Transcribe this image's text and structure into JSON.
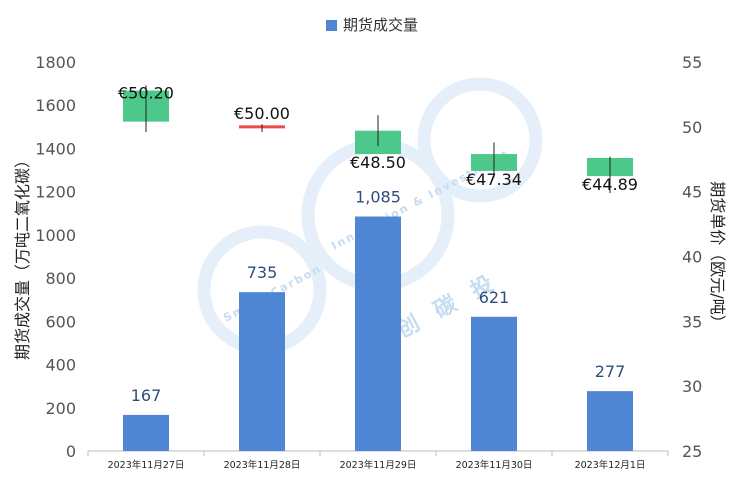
{
  "legend": {
    "label": "期货成交量",
    "color": "#4f86d3"
  },
  "axes": {
    "left_label": "期货成交量（万吨二氧化碳）",
    "right_label": "期货单价（欧元/吨）",
    "left_ticks": [
      "0",
      "200",
      "400",
      "600",
      "800",
      "1000",
      "1200",
      "1400",
      "1600",
      "1800"
    ],
    "right_ticks": [
      "25",
      "30",
      "35",
      "40",
      "45",
      "50",
      "55"
    ]
  },
  "watermark": {
    "cn": "创 碳 投",
    "en_a": "Smart Carbon",
    "en_b": "Innovation & Investment"
  },
  "chart_data": {
    "type": "bar",
    "categories": [
      "2023年11月27日",
      "2023年11月28日",
      "2023年11月29日",
      "2023年11月30日",
      "2023年12月1日"
    ],
    "series": [
      {
        "name": "期货成交量",
        "type": "bar",
        "axis": "left",
        "values": [
          167,
          735,
          1085,
          621,
          277
        ],
        "labels": [
          "167",
          "735",
          "1,085",
          "621",
          "277"
        ],
        "color": "#4f86d3"
      },
      {
        "type": "candlestick",
        "axis": "right",
        "open": [
          50.4,
          50.0,
          47.9,
          47.9,
          46.2
        ],
        "close": [
          52.8,
          50.0,
          49.7,
          46.6,
          47.6
        ],
        "high": [
          53.2,
          50.2,
          50.9,
          48.8,
          47.7
        ],
        "low": [
          49.6,
          49.6,
          48.5,
          46.1,
          44.9
        ],
        "labels": [
          "€50.20",
          "€50.00",
          "€48.50",
          "€47.34",
          "€44.89"
        ],
        "up_color": "#4cc98a",
        "flat_color": "#ee4b4b"
      }
    ],
    "ylim_left": [
      0,
      1800
    ],
    "ylim_right": [
      25,
      55
    ],
    "grid": false
  }
}
